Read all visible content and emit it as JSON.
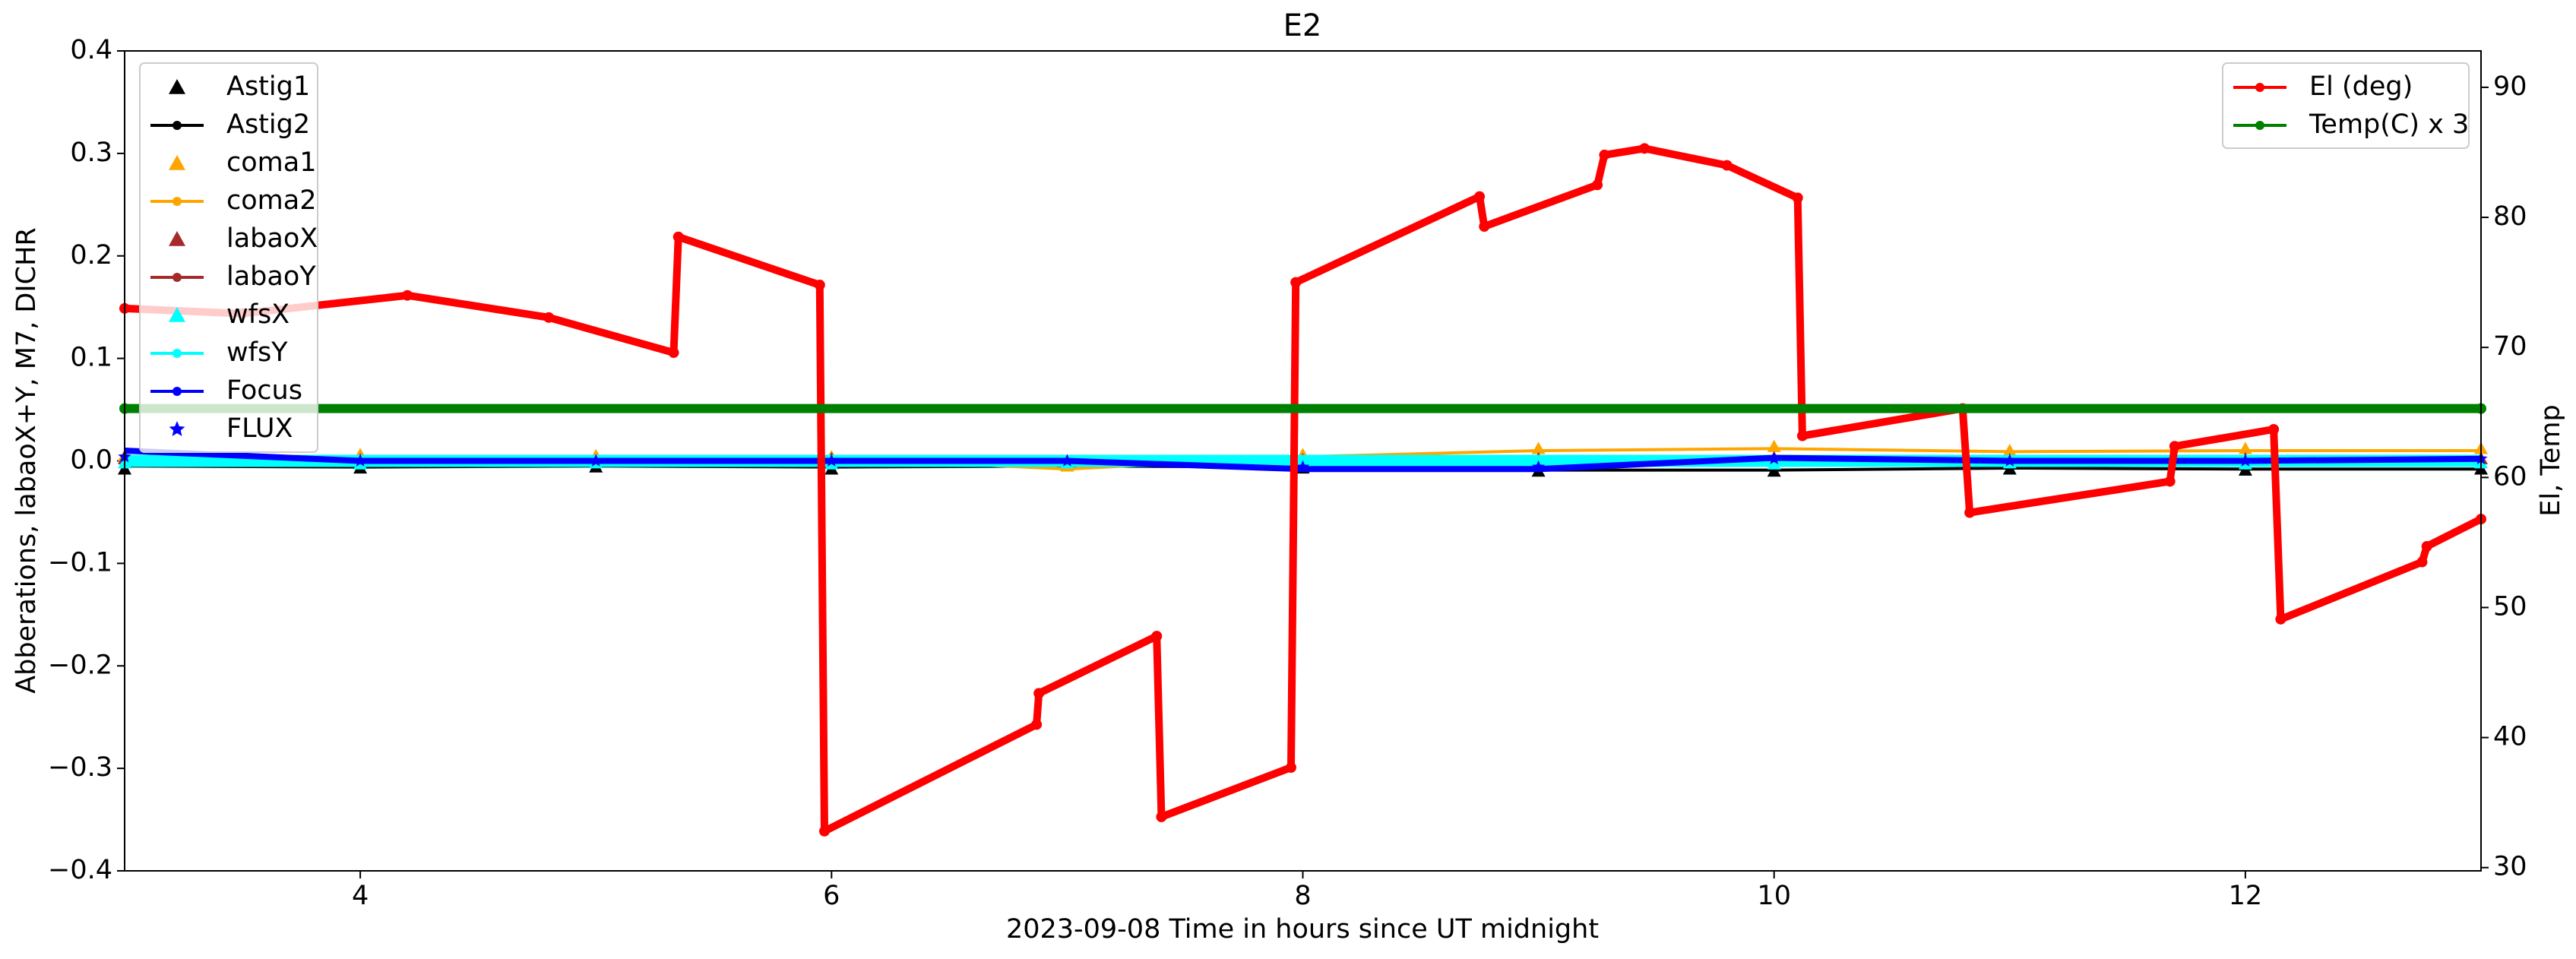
{
  "chart_data": {
    "type": "line",
    "title": "E2",
    "x_label": "2023-09-08  Time in hours since UT midnight",
    "y_label": "Abberations, labaoX+Y, M7, DICHR",
    "y2_label": "El, Temp",
    "xlim": [
      3,
      13
    ],
    "xticks": [
      4,
      6,
      8,
      10,
      12
    ],
    "ylim": [
      -0.4,
      0.4
    ],
    "yticks": [
      {
        "value": -0.4,
        "label": "−0.4"
      },
      {
        "value": -0.3,
        "label": "−0.3"
      },
      {
        "value": -0.2,
        "label": "−0.2"
      },
      {
        "value": -0.1,
        "label": "−0.1"
      },
      {
        "value": 0,
        "label": "0.0"
      },
      0.1,
      0.2,
      0.3,
      0.4
    ],
    "y2lim": [
      29.75,
      92.8
    ],
    "y2ticks": [
      30,
      40,
      50,
      60,
      70,
      80,
      90
    ],
    "legend": "upper left",
    "y2_legend": "upper right",
    "series": [
      {
        "name": "Astig1",
        "color": "#000000",
        "kind": "scatter",
        "marker": "triangle",
        "x": [
          3,
          4,
          5,
          6,
          7,
          8,
          9,
          10,
          11,
          12,
          13
        ],
        "values": [
          -0.008,
          -0.007,
          -0.006,
          -0.008,
          -0.005,
          -0.007,
          -0.01,
          -0.01,
          -0.008,
          -0.009,
          -0.008
        ]
      },
      {
        "name": "Astig2",
        "color": "#000000",
        "kind": "line",
        "marker": "circle",
        "x": [
          3,
          4,
          5,
          6,
          7,
          8,
          9,
          10,
          11,
          12,
          13
        ],
        "values": [
          -0.005,
          -0.006,
          -0.005,
          -0.006,
          -0.005,
          -0.006,
          -0.009,
          -0.009,
          -0.007,
          -0.008,
          -0.008
        ]
      },
      {
        "name": "coma1",
        "color": "#ffa500",
        "kind": "scatter",
        "marker": "triangle",
        "x": [
          3,
          4,
          5,
          6,
          7,
          8,
          9,
          10,
          11,
          12,
          13
        ],
        "values": [
          0.005,
          0.006,
          0.005,
          0.004,
          -0.005,
          0.006,
          0.012,
          0.014,
          0.01,
          0.012,
          0.012
        ]
      },
      {
        "name": "coma2",
        "color": "#ffa500",
        "kind": "line",
        "marker": "circle",
        "x": [
          3,
          4,
          5,
          6,
          7,
          8,
          9,
          10,
          11,
          12,
          13
        ],
        "values": [
          0.003,
          0.004,
          0.004,
          0.003,
          -0.008,
          0.004,
          0.01,
          0.012,
          0.009,
          0.01,
          0.01
        ]
      },
      {
        "name": "labaoX",
        "color": "#a52a2a",
        "kind": "scatter",
        "marker": "triangle",
        "x": [
          3,
          4,
          5,
          6,
          7,
          8,
          9,
          10,
          11,
          12,
          13
        ],
        "values": [
          0.002,
          0.001,
          0.0,
          0.002,
          0.0,
          0.001,
          0.002,
          0.003,
          0.001,
          0.002,
          0.002
        ]
      },
      {
        "name": "labaoY",
        "color": "#a52a2a",
        "kind": "line",
        "marker": "circle",
        "x": [
          3,
          4,
          5,
          6,
          7,
          8,
          9,
          10,
          11,
          12,
          13
        ],
        "values": [
          0.0,
          -0.001,
          0.0,
          0.001,
          0.0,
          -0.001,
          0.001,
          0.002,
          0.0,
          0.001,
          0.001
        ]
      },
      {
        "name": "wfsX",
        "color": "#00ffff",
        "kind": "scatter",
        "marker": "triangle",
        "x": [
          3,
          4,
          5,
          6,
          7,
          8,
          9,
          10,
          11,
          12,
          13
        ],
        "values": [
          -0.002,
          -0.003,
          -0.002,
          -0.003,
          -0.002,
          -0.003,
          -0.002,
          -0.003,
          -0.002,
          -0.003,
          -0.002
        ]
      },
      {
        "name": "wfsY",
        "color": "#00ffff",
        "kind": "line",
        "marker": "circle",
        "x": [
          3,
          4,
          5,
          6,
          7,
          8,
          9,
          10,
          11,
          12,
          13
        ],
        "values": [
          0.0,
          0.0,
          0.0,
          0.0,
          0.0,
          0.0,
          0.0,
          0.0,
          0.0,
          0.0,
          0.0
        ]
      },
      {
        "name": "Focus",
        "color": "#0000ff",
        "kind": "line",
        "marker": "circle",
        "x": [
          3,
          4,
          5,
          6,
          7,
          8,
          9,
          10,
          11,
          12,
          13
        ],
        "values": [
          0.01,
          0.0,
          0.0,
          0.0,
          0.0,
          -0.008,
          -0.008,
          0.003,
          0.0,
          0.0,
          0.002
        ]
      },
      {
        "name": "FLUX",
        "color": "#0000ff",
        "kind": "scatter",
        "marker": "star",
        "x": [
          3,
          4,
          5,
          6,
          7,
          8,
          9,
          10,
          11,
          12,
          13
        ],
        "values": [
          0.004,
          0.0,
          0.0,
          0.0,
          0.0,
          -0.006,
          -0.006,
          0.002,
          0.0,
          0.0,
          0.002
        ]
      },
      {
        "name": "El (deg)",
        "color": "#ff0000",
        "kind": "line",
        "marker": "circle",
        "axis": "y2",
        "x": [
          3.0,
          3.5,
          4.2,
          4.8,
          5.33,
          5.35,
          5.95,
          5.97,
          6.87,
          6.88,
          7.38,
          7.4,
          7.95,
          7.97,
          8.75,
          8.77,
          9.25,
          9.28,
          9.45,
          9.8,
          10.1,
          10.12,
          10.8,
          10.83,
          11.68,
          11.7,
          12.12,
          12.15,
          12.75,
          12.77,
          13.0
        ],
        "values": [
          73.0,
          72.6,
          74.0,
          72.3,
          69.6,
          78.5,
          74.8,
          32.8,
          41.0,
          43.4,
          47.8,
          33.9,
          37.7,
          75.0,
          81.6,
          79.3,
          82.5,
          84.8,
          85.3,
          84.0,
          81.5,
          63.2,
          65.3,
          57.3,
          59.7,
          62.4,
          63.7,
          49.1,
          53.5,
          54.7,
          56.8
        ]
      },
      {
        "name": "Temp(C) x 3",
        "color": "#008000",
        "kind": "line",
        "marker": "circle",
        "axis": "y2",
        "x": [
          3,
          13
        ],
        "values": [
          65.3,
          65.3
        ]
      }
    ]
  }
}
